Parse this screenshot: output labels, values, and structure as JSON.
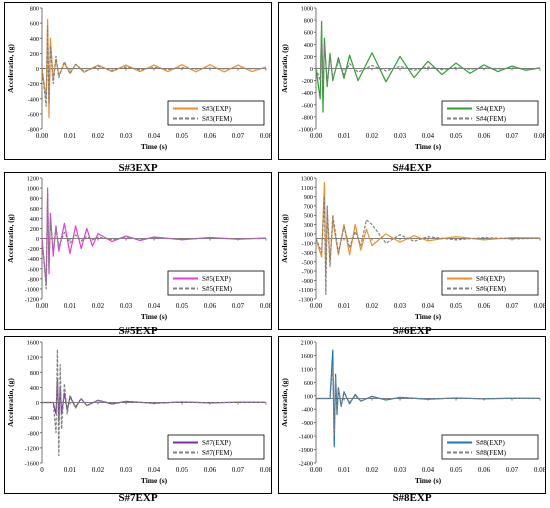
{
  "chart_data": [
    {
      "type": "line",
      "caption": "S#3EXP",
      "xlabel": "Time (s)",
      "ylabel": "Acceleratio, (g)",
      "xlim": [
        0,
        0.08
      ],
      "ylim": [
        -800,
        800
      ],
      "xticks": [
        0,
        0.01,
        0.02,
        0.03,
        0.04,
        0.05,
        0.06,
        0.07,
        0.08
      ],
      "xtick_labels": [
        "0.00",
        "0.01",
        "0.02",
        "0.03",
        "0.04",
        "0.05",
        "0.06",
        "0.07",
        "0.08"
      ],
      "yticks": [
        -800,
        -600,
        -400,
        -200,
        0,
        200,
        400,
        600,
        800
      ],
      "ytick_labels": [
        "-800",
        "-600",
        "-400",
        "-200",
        "0",
        "200",
        "400",
        "600",
        "800"
      ],
      "legend_position": "bottom-right",
      "series": [
        {
          "name": "S#3(EXP)",
          "color": "#f28e2b",
          "dash": "solid",
          "x": [
            0.0,
            0.0015,
            0.002,
            0.0025,
            0.003,
            0.004,
            0.005,
            0.006,
            0.008,
            0.01,
            0.012,
            0.015,
            0.02,
            0.025,
            0.03,
            0.035,
            0.04,
            0.045,
            0.05,
            0.055,
            0.06,
            0.065,
            0.07,
            0.075,
            0.08
          ],
          "y": [
            0,
            -400,
            650,
            -650,
            400,
            -150,
            120,
            -90,
            70,
            -60,
            55,
            -50,
            45,
            -40,
            45,
            -40,
            45,
            -40,
            50,
            -45,
            50,
            -45,
            45,
            -40,
            20
          ]
        },
        {
          "name": "S#3(FEM)",
          "color": "#808080",
          "dash": "dashed",
          "x": [
            0.0,
            0.0015,
            0.002,
            0.0025,
            0.003,
            0.004,
            0.005,
            0.006,
            0.008,
            0.01,
            0.012,
            0.015,
            0.02,
            0.025,
            0.03,
            0.035,
            0.04,
            0.045,
            0.05,
            0.055,
            0.06,
            0.065,
            0.07,
            0.075,
            0.08
          ],
          "y": [
            0,
            -500,
            560,
            -450,
            300,
            -200,
            160,
            -120,
            90,
            -70,
            55,
            -40,
            30,
            -25,
            20,
            -18,
            15,
            -12,
            10,
            -8,
            6,
            -5,
            4,
            -3,
            2
          ]
        }
      ]
    },
    {
      "type": "line",
      "caption": "S#4EXP",
      "xlabel": "Time (s)",
      "ylabel": "Acceleratio, (g)",
      "xlim": [
        0,
        0.08
      ],
      "ylim": [
        -1000,
        1000
      ],
      "xticks": [
        0,
        0.01,
        0.02,
        0.03,
        0.04,
        0.05,
        0.06,
        0.07,
        0.08
      ],
      "xtick_labels": [
        "0.00",
        "0.01",
        "0.02",
        "0.03",
        "0.04",
        "0.05",
        "0.06",
        "0.07",
        "0.08"
      ],
      "yticks": [
        -1000,
        -800,
        -600,
        -400,
        -200,
        0,
        200,
        400,
        600,
        800,
        1000
      ],
      "ytick_labels": [
        "-1000",
        "-800",
        "-600",
        "-400",
        "-200",
        "0",
        "200",
        "400",
        "600",
        "800",
        "1000"
      ],
      "legend_position": "bottom-right",
      "series": [
        {
          "name": "S#4(EXP)",
          "color": "#2ca02c",
          "dash": "solid",
          "x": [
            0.0,
            0.0015,
            0.002,
            0.0025,
            0.003,
            0.004,
            0.005,
            0.006,
            0.008,
            0.01,
            0.012,
            0.015,
            0.02,
            0.025,
            0.03,
            0.035,
            0.04,
            0.045,
            0.05,
            0.055,
            0.06,
            0.065,
            0.07,
            0.075,
            0.08
          ],
          "y": [
            0,
            -500,
            780,
            -720,
            500,
            -300,
            250,
            -200,
            180,
            -160,
            220,
            -200,
            260,
            -220,
            200,
            -150,
            120,
            -100,
            90,
            -80,
            60,
            -50,
            40,
            -30,
            10
          ]
        },
        {
          "name": "S#4(FEM)",
          "color": "#808080",
          "dash": "dashed",
          "x": [
            0.0,
            0.0015,
            0.002,
            0.0025,
            0.003,
            0.004,
            0.005,
            0.006,
            0.008,
            0.01,
            0.012,
            0.015,
            0.02,
            0.025,
            0.03,
            0.035,
            0.04,
            0.045,
            0.05,
            0.055,
            0.06,
            0.065,
            0.07,
            0.075,
            0.08
          ],
          "y": [
            0,
            -200,
            650,
            -300,
            400,
            -250,
            200,
            -160,
            120,
            -100,
            80,
            -60,
            50,
            -40,
            35,
            -30,
            25,
            -20,
            15,
            -12,
            10,
            -8,
            6,
            -4,
            2
          ]
        }
      ]
    },
    {
      "type": "line",
      "caption": "S#5EXP",
      "xlabel": "Time (s)",
      "ylabel": "Acceleratio, (g)",
      "xlim": [
        0,
        0.08
      ],
      "ylim": [
        -1200,
        1200
      ],
      "xticks": [
        0,
        0.01,
        0.02,
        0.03,
        0.04,
        0.05,
        0.06,
        0.07,
        0.08
      ],
      "xtick_labels": [
        "0.00",
        "0.01",
        "0.02",
        "0.03",
        "0.04",
        "0.05",
        "0.06",
        "0.07",
        "0.08"
      ],
      "yticks": [
        -1200,
        -1000,
        -800,
        -600,
        -400,
        -200,
        0,
        200,
        400,
        600,
        800,
        1000,
        1200
      ],
      "ytick_labels": [
        "-1200",
        "-1000",
        "-800",
        "-600",
        "-400",
        "-200",
        "0",
        "200",
        "400",
        "600",
        "800",
        "1000",
        "1200"
      ],
      "legend_position": "bottom-right",
      "series": [
        {
          "name": "S#5(EXP)",
          "color": "#e83ed6",
          "dash": "solid",
          "x": [
            0.0,
            0.0015,
            0.002,
            0.0025,
            0.003,
            0.004,
            0.005,
            0.006,
            0.008,
            0.01,
            0.012,
            0.014,
            0.016,
            0.018,
            0.02,
            0.025,
            0.03,
            0.035,
            0.04,
            0.05,
            0.06,
            0.07,
            0.08
          ],
          "y": [
            0,
            -900,
            900,
            -700,
            500,
            -350,
            250,
            -250,
            300,
            -300,
            250,
            -200,
            200,
            -150,
            100,
            -60,
            50,
            -40,
            30,
            -25,
            20,
            -15,
            10
          ]
        },
        {
          "name": "S#5(FEM)",
          "color": "#808080",
          "dash": "dashed",
          "x": [
            0.0,
            0.0015,
            0.002,
            0.0025,
            0.003,
            0.004,
            0.005,
            0.006,
            0.008,
            0.01,
            0.012,
            0.014,
            0.016,
            0.018,
            0.02,
            0.025,
            0.03,
            0.035,
            0.04,
            0.05,
            0.06,
            0.07,
            0.08
          ],
          "y": [
            0,
            -1000,
            1000,
            -600,
            400,
            -250,
            200,
            -150,
            120,
            -90,
            70,
            -50,
            40,
            -30,
            25,
            -20,
            15,
            -12,
            10,
            -8,
            6,
            -4,
            2
          ]
        }
      ]
    },
    {
      "type": "line",
      "caption": "S#6EXP",
      "xlabel": "Time (s)",
      "ylabel": "Acceleratio, (g)",
      "xlim": [
        0,
        0.08
      ],
      "ylim": [
        -1300,
        1300
      ],
      "xticks": [
        0,
        0.01,
        0.02,
        0.03,
        0.04,
        0.05,
        0.06,
        0.07,
        0.08
      ],
      "xtick_labels": [
        "0.00",
        "0.01",
        "0.02",
        "0.03",
        "0.04",
        "0.05",
        "0.06",
        "0.07",
        "0.08"
      ],
      "yticks": [
        -1300,
        -1100,
        -900,
        -700,
        -500,
        -300,
        -100,
        100,
        300,
        500,
        700,
        900,
        1100,
        1300
      ],
      "ytick_labels": [
        "-1300",
        "-1100",
        "-900",
        "-700",
        "-500",
        "-300",
        "-100",
        "100",
        "300",
        "500",
        "700",
        "900",
        "1100",
        "1300"
      ],
      "legend_position": "bottom-right",
      "series": [
        {
          "name": "S#6(EXP)",
          "color": "#f28e2b",
          "dash": "solid",
          "x": [
            0.0,
            0.002,
            0.003,
            0.0035,
            0.004,
            0.005,
            0.006,
            0.008,
            0.01,
            0.012,
            0.014,
            0.016,
            0.018,
            0.02,
            0.025,
            0.03,
            0.035,
            0.04,
            0.05,
            0.06,
            0.07,
            0.08
          ],
          "y": [
            0,
            -400,
            1200,
            -800,
            600,
            -500,
            400,
            -350,
            300,
            -350,
            300,
            -250,
            200,
            -150,
            100,
            -80,
            60,
            -50,
            40,
            -30,
            20,
            10
          ]
        },
        {
          "name": "S#6(FEM)",
          "color": "#808080",
          "dash": "dashed",
          "x": [
            0.0,
            0.002,
            0.003,
            0.0035,
            0.004,
            0.005,
            0.006,
            0.008,
            0.01,
            0.012,
            0.014,
            0.016,
            0.018,
            0.02,
            0.025,
            0.03,
            0.035,
            0.04,
            0.05,
            0.06,
            0.07,
            0.08
          ],
          "y": [
            0,
            -300,
            900,
            -1200,
            700,
            -600,
            500,
            -300,
            250,
            -200,
            150,
            -150,
            400,
            300,
            -100,
            80,
            -60,
            40,
            -30,
            20,
            -10,
            5
          ]
        }
      ]
    },
    {
      "type": "line",
      "caption": "S#7EXP",
      "xlabel": "Time (s)",
      "ylabel": "Acceleratio, (g)",
      "xlim": [
        0,
        0.08
      ],
      "ylim": [
        -1600,
        1600
      ],
      "xticks": [
        0,
        0.01,
        0.02,
        0.03,
        0.04,
        0.05,
        0.06,
        0.07,
        0.08
      ],
      "xtick_labels": [
        "0",
        "0.01",
        "0.02",
        "0.03",
        "0.04",
        "0.05",
        "0.06",
        "0.07",
        "0.08"
      ],
      "yticks": [
        -1600,
        -1200,
        -800,
        -400,
        0,
        400,
        800,
        1200,
        1600
      ],
      "ytick_labels": [
        "-1600",
        "-1200",
        "-800",
        "-400",
        "0",
        "400",
        "800",
        "1200",
        "1600"
      ],
      "legend_position": "bottom-right",
      "series": [
        {
          "name": "S#7(EXP)",
          "color": "#7b2fa0",
          "dash": "solid",
          "x": [
            0.0,
            0.004,
            0.005,
            0.0055,
            0.006,
            0.0065,
            0.007,
            0.008,
            0.009,
            0.01,
            0.012,
            0.014,
            0.016,
            0.02,
            0.025,
            0.03,
            0.04,
            0.05,
            0.06,
            0.07,
            0.08
          ],
          "y": [
            0,
            0,
            -300,
            600,
            -500,
            400,
            -300,
            250,
            -200,
            150,
            -120,
            100,
            -80,
            60,
            -40,
            30,
            -20,
            15,
            -10,
            8,
            5
          ]
        },
        {
          "name": "S#7(FEM)",
          "color": "#808080",
          "dash": "dashed",
          "x": [
            0.0,
            0.004,
            0.005,
            0.0055,
            0.006,
            0.0065,
            0.007,
            0.008,
            0.009,
            0.01,
            0.012,
            0.014,
            0.016,
            0.02,
            0.025,
            0.03,
            0.04,
            0.05,
            0.06,
            0.07,
            0.08
          ],
          "y": [
            0,
            0,
            -800,
            1400,
            -1400,
            1000,
            -700,
            500,
            -300,
            200,
            -150,
            100,
            -80,
            50,
            -30,
            20,
            -15,
            10,
            -5,
            3,
            2
          ]
        }
      ]
    },
    {
      "type": "line",
      "caption": "S#8EXP",
      "xlabel": "Time (s)",
      "ylabel": "Acceleratio, (g)",
      "xlim": [
        0,
        0.08
      ],
      "ylim": [
        -2400,
        2100
      ],
      "xticks": [
        0,
        0.01,
        0.02,
        0.03,
        0.04,
        0.05,
        0.06,
        0.07,
        0.08
      ],
      "xtick_labels": [
        "0.00",
        "0.01",
        "0.02",
        "0.03",
        "0.04",
        "0.05",
        "0.06",
        "0.07",
        "0.08"
      ],
      "yticks": [
        -2400,
        -1900,
        -1400,
        -900,
        -400,
        100,
        600,
        1100,
        1600,
        2100
      ],
      "ytick_labels": [
        "-2400",
        "-1900",
        "-1400",
        "-900",
        "-400",
        "100",
        "600",
        "1100",
        "1600",
        "2100"
      ],
      "legend_position": "bottom-right",
      "series": [
        {
          "name": "S#8(EXP)",
          "color": "#1f77b4",
          "dash": "solid",
          "x": [
            0.0,
            0.005,
            0.006,
            0.0065,
            0.007,
            0.0075,
            0.008,
            0.009,
            0.01,
            0.012,
            0.014,
            0.016,
            0.02,
            0.025,
            0.03,
            0.04,
            0.05,
            0.06,
            0.07,
            0.08
          ],
          "y": [
            0,
            0,
            1800,
            -1800,
            900,
            -600,
            400,
            -300,
            250,
            -200,
            150,
            -100,
            80,
            -60,
            40,
            -30,
            20,
            -15,
            10,
            5
          ]
        },
        {
          "name": "S#8(FEM)",
          "color": "#808080",
          "dash": "dashed",
          "x": [
            0.0,
            0.005,
            0.006,
            0.0065,
            0.007,
            0.0075,
            0.008,
            0.009,
            0.01,
            0.012,
            0.014,
            0.016,
            0.02,
            0.025,
            0.03,
            0.04,
            0.05,
            0.06,
            0.07,
            0.08
          ],
          "y": [
            0,
            0,
            1200,
            -1400,
            800,
            -500,
            350,
            -250,
            200,
            -150,
            100,
            -80,
            60,
            -40,
            30,
            -20,
            15,
            -10,
            5,
            2
          ]
        }
      ]
    }
  ]
}
